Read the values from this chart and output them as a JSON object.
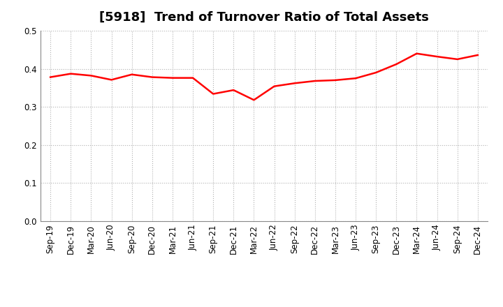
{
  "title": "[5918]  Trend of Turnover Ratio of Total Assets",
  "x_labels": [
    "Sep-19",
    "Dec-19",
    "Mar-20",
    "Jun-20",
    "Sep-20",
    "Dec-20",
    "Mar-21",
    "Jun-21",
    "Sep-21",
    "Dec-21",
    "Mar-22",
    "Jun-22",
    "Sep-22",
    "Dec-22",
    "Mar-23",
    "Jun-23",
    "Sep-23",
    "Dec-23",
    "Mar-24",
    "Jun-24",
    "Sep-24",
    "Dec-24"
  ],
  "y_values": [
    0.378,
    0.387,
    0.382,
    0.371,
    0.385,
    0.378,
    0.376,
    0.376,
    0.334,
    0.344,
    0.318,
    0.354,
    0.362,
    0.368,
    0.37,
    0.375,
    0.39,
    0.412,
    0.44,
    0.432,
    0.425,
    0.436
  ],
  "line_color": "#ff0000",
  "line_width": 1.8,
  "ylim": [
    0.0,
    0.5
  ],
  "yticks": [
    0.0,
    0.1,
    0.2,
    0.3,
    0.4,
    0.5
  ],
  "grid_color": "#b0b0b0",
  "background_color": "#ffffff",
  "title_fontsize": 13,
  "tick_fontsize": 8.5
}
